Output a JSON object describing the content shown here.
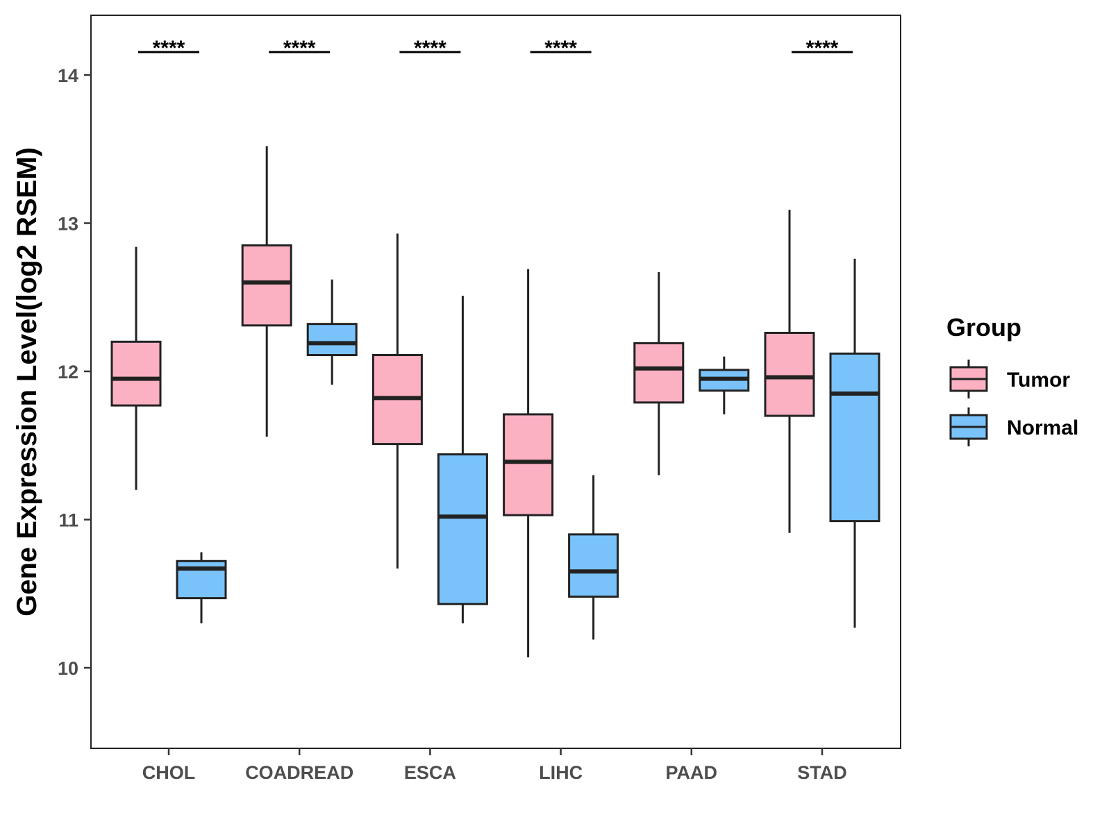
{
  "chart_data": {
    "type": "boxplot",
    "title": "",
    "xlabel": "",
    "ylabel": "Gene Expression Level(log2 RSEM)",
    "ylim": [
      9.5,
      14.4
    ],
    "y_ticks": [
      10,
      11,
      12,
      13,
      14
    ],
    "categories": [
      "CHOL",
      "COADREAD",
      "ESCA",
      "LIHC",
      "PAAD",
      "STAD"
    ],
    "legend": {
      "title": "Group",
      "position": "right",
      "entries": [
        "Tumor",
        "Normal"
      ]
    },
    "colors": {
      "Tumor": "#fcb1c3",
      "Normal": "#79c3fa",
      "stroke": "#222222"
    },
    "series": [
      {
        "name": "Tumor",
        "boxes": [
          {
            "category": "CHOL",
            "whisker_low": 11.2,
            "q1": 11.77,
            "median": 11.95,
            "q3": 12.2,
            "whisker_high": 12.84
          },
          {
            "category": "COADREAD",
            "whisker_low": 11.56,
            "q1": 12.31,
            "median": 12.6,
            "q3": 12.85,
            "whisker_high": 13.52
          },
          {
            "category": "ESCA",
            "whisker_low": 10.67,
            "q1": 11.51,
            "median": 11.82,
            "q3": 12.11,
            "whisker_high": 12.93
          },
          {
            "category": "LIHC",
            "whisker_low": 10.07,
            "q1": 11.03,
            "median": 11.39,
            "q3": 11.71,
            "whisker_high": 12.69
          },
          {
            "category": "PAAD",
            "whisker_low": 11.3,
            "q1": 11.79,
            "median": 12.02,
            "q3": 12.19,
            "whisker_high": 12.67
          },
          {
            "category": "STAD",
            "whisker_low": 10.91,
            "q1": 11.7,
            "median": 11.96,
            "q3": 12.26,
            "whisker_high": 13.09
          }
        ]
      },
      {
        "name": "Normal",
        "boxes": [
          {
            "category": "CHOL",
            "whisker_low": 10.3,
            "q1": 10.47,
            "median": 10.67,
            "q3": 10.72,
            "whisker_high": 10.78
          },
          {
            "category": "COADREAD",
            "whisker_low": 11.91,
            "q1": 12.11,
            "median": 12.19,
            "q3": 12.32,
            "whisker_high": 12.62
          },
          {
            "category": "ESCA",
            "whisker_low": 10.3,
            "q1": 10.43,
            "median": 11.02,
            "q3": 11.44,
            "whisker_high": 12.51
          },
          {
            "category": "LIHC",
            "whisker_low": 10.19,
            "q1": 10.48,
            "median": 10.65,
            "q3": 10.9,
            "whisker_high": 11.3
          },
          {
            "category": "PAAD",
            "whisker_low": 11.71,
            "q1": 11.87,
            "median": 11.95,
            "q3": 12.01,
            "whisker_high": 12.1
          },
          {
            "category": "STAD",
            "whisker_low": 10.27,
            "q1": 10.99,
            "median": 11.85,
            "q3": 12.12,
            "whisker_high": 12.76
          }
        ]
      }
    ],
    "significance": [
      {
        "category": "CHOL",
        "label": "****"
      },
      {
        "category": "COADREAD",
        "label": "****"
      },
      {
        "category": "ESCA",
        "label": "****"
      },
      {
        "category": "LIHC",
        "label": "****"
      },
      {
        "category": "PAAD",
        "label": ""
      },
      {
        "category": "STAD",
        "label": "****"
      }
    ]
  }
}
